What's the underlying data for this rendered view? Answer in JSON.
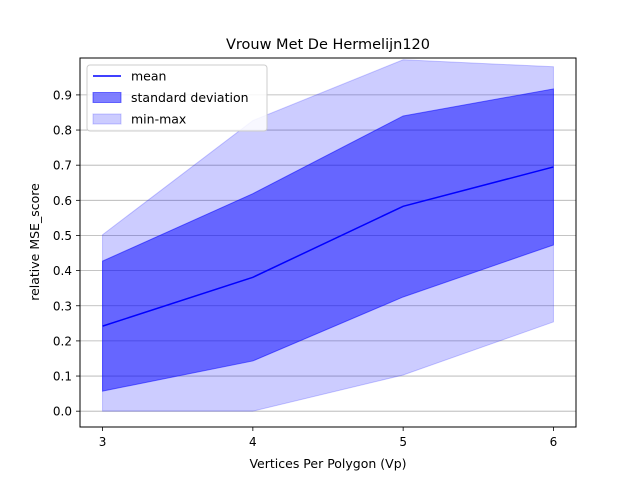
{
  "chart_data": {
    "type": "area",
    "title": "Vrouw Met De Hermelijn120",
    "xlabel": "Vertices Per Polygon (Vp)",
    "ylabel": "relative MSE_score",
    "x": [
      3,
      4,
      5,
      6
    ],
    "xlim": [
      2.85,
      6.15
    ],
    "ylim": [
      -0.045,
      1.005
    ],
    "xticks": [
      "3",
      "4",
      "5",
      "6"
    ],
    "yticks": [
      "0.0",
      "0.1",
      "0.2",
      "0.3",
      "0.4",
      "0.5",
      "0.6",
      "0.7",
      "0.8",
      "0.9"
    ],
    "grid": "horizontal",
    "legend_position": "top-left",
    "series": [
      {
        "name": "mean",
        "kind": "line",
        "color": "#0000ff",
        "values": [
          0.242,
          0.381,
          0.583,
          0.695
        ]
      },
      {
        "name": "standard deviation",
        "kind": "band",
        "color": "#0000ff",
        "opacity": 0.5,
        "lower": [
          0.057,
          0.143,
          0.325,
          0.473
        ],
        "upper": [
          0.427,
          0.619,
          0.84,
          0.917
        ]
      },
      {
        "name": "min-max",
        "kind": "band",
        "color": "#0000ff",
        "opacity": 0.2,
        "lower": [
          0.0,
          0.0,
          0.103,
          0.254
        ],
        "upper": [
          0.502,
          0.827,
          1.0,
          0.98
        ]
      }
    ]
  }
}
